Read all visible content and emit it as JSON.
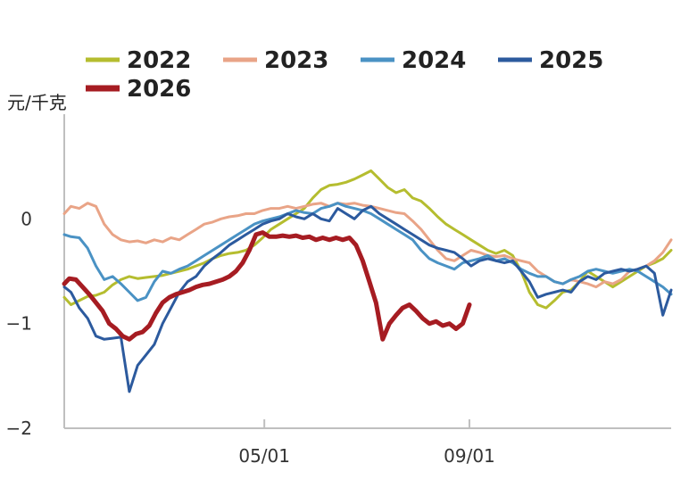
{
  "chart_data": {
    "type": "line",
    "ylabel": "元/千克",
    "ylim": [
      -2,
      1
    ],
    "yticks": [
      {
        "value": 0,
        "label": "0"
      },
      {
        "value": -1,
        "label": "−1"
      },
      {
        "value": -2,
        "label": "−2"
      }
    ],
    "xlim": [
      1,
      365
    ],
    "xticks": [
      {
        "value": 121,
        "label": "05/01"
      },
      {
        "value": 244,
        "label": "09/01"
      }
    ],
    "grid": false,
    "legend_position": "top",
    "series": [
      {
        "name": "2022",
        "color": "#b5bd2f",
        "width": 3,
        "x": [
          1,
          5,
          10,
          15,
          20,
          25,
          30,
          35,
          40,
          45,
          50,
          55,
          60,
          65,
          70,
          75,
          80,
          85,
          90,
          95,
          100,
          105,
          110,
          115,
          120,
          125,
          130,
          135,
          140,
          145,
          150,
          155,
          160,
          165,
          170,
          175,
          180,
          185,
          190,
          195,
          200,
          205,
          210,
          215,
          220,
          225,
          230,
          235,
          240,
          245,
          250,
          255,
          260,
          265,
          270,
          275,
          280,
          285,
          290,
          295,
          300,
          305,
          310,
          315,
          320,
          325,
          330,
          335,
          340,
          345,
          350,
          355,
          360,
          365
        ],
        "y": [
          -0.75,
          -0.82,
          -0.78,
          -0.74,
          -0.73,
          -0.7,
          -0.63,
          -0.58,
          -0.55,
          -0.57,
          -0.56,
          -0.55,
          -0.54,
          -0.52,
          -0.5,
          -0.48,
          -0.45,
          -0.42,
          -0.38,
          -0.35,
          -0.33,
          -0.32,
          -0.3,
          -0.25,
          -0.18,
          -0.1,
          -0.05,
          0.0,
          0.05,
          0.1,
          0.2,
          0.28,
          0.32,
          0.33,
          0.35,
          0.38,
          0.42,
          0.46,
          0.38,
          0.3,
          0.25,
          0.28,
          0.2,
          0.17,
          0.1,
          0.02,
          -0.05,
          -0.1,
          -0.15,
          -0.2,
          -0.25,
          -0.3,
          -0.33,
          -0.3,
          -0.35,
          -0.5,
          -0.7,
          -0.82,
          -0.85,
          -0.78,
          -0.7,
          -0.68,
          -0.6,
          -0.5,
          -0.55,
          -0.6,
          -0.65,
          -0.6,
          -0.55,
          -0.5,
          -0.45,
          -0.42,
          -0.38,
          -0.3
        ]
      },
      {
        "name": "2023",
        "color": "#e9a487",
        "width": 3,
        "x": [
          1,
          5,
          10,
          15,
          20,
          25,
          30,
          35,
          40,
          45,
          50,
          55,
          60,
          65,
          70,
          75,
          80,
          85,
          90,
          95,
          100,
          105,
          110,
          115,
          120,
          125,
          130,
          135,
          140,
          145,
          150,
          155,
          160,
          165,
          170,
          175,
          180,
          185,
          190,
          195,
          200,
          205,
          210,
          215,
          220,
          225,
          230,
          235,
          240,
          245,
          250,
          255,
          260,
          265,
          270,
          275,
          280,
          285,
          290,
          295,
          300,
          305,
          310,
          315,
          320,
          325,
          330,
          335,
          340,
          345,
          350,
          355,
          360,
          365
        ],
        "y": [
          0.05,
          0.12,
          0.1,
          0.15,
          0.12,
          -0.05,
          -0.15,
          -0.2,
          -0.22,
          -0.21,
          -0.23,
          -0.2,
          -0.22,
          -0.18,
          -0.2,
          -0.15,
          -0.1,
          -0.05,
          -0.03,
          0.0,
          0.02,
          0.03,
          0.05,
          0.05,
          0.08,
          0.1,
          0.1,
          0.12,
          0.1,
          0.12,
          0.14,
          0.15,
          0.12,
          0.15,
          0.14,
          0.15,
          0.13,
          0.12,
          0.1,
          0.08,
          0.06,
          0.05,
          -0.02,
          -0.1,
          -0.2,
          -0.3,
          -0.38,
          -0.4,
          -0.35,
          -0.3,
          -0.32,
          -0.35,
          -0.36,
          -0.35,
          -0.38,
          -0.4,
          -0.42,
          -0.5,
          -0.55,
          -0.6,
          -0.62,
          -0.58,
          -0.6,
          -0.62,
          -0.65,
          -0.6,
          -0.62,
          -0.58,
          -0.5,
          -0.48,
          -0.45,
          -0.4,
          -0.32,
          -0.2
        ]
      },
      {
        "name": "2024",
        "color": "#4a92c4",
        "width": 3,
        "x": [
          1,
          5,
          10,
          15,
          20,
          25,
          30,
          35,
          40,
          45,
          50,
          55,
          60,
          65,
          70,
          75,
          80,
          85,
          90,
          95,
          100,
          105,
          110,
          115,
          120,
          125,
          130,
          135,
          140,
          145,
          150,
          155,
          160,
          165,
          170,
          175,
          180,
          185,
          190,
          195,
          200,
          205,
          210,
          215,
          220,
          225,
          230,
          235,
          240,
          245,
          250,
          255,
          260,
          265,
          270,
          275,
          280,
          285,
          290,
          295,
          300,
          305,
          310,
          315,
          320,
          325,
          330,
          335,
          340,
          345,
          350,
          355,
          360,
          365
        ],
        "y": [
          -0.15,
          -0.17,
          -0.18,
          -0.28,
          -0.45,
          -0.58,
          -0.55,
          -0.62,
          -0.7,
          -0.78,
          -0.75,
          -0.6,
          -0.5,
          -0.52,
          -0.48,
          -0.45,
          -0.4,
          -0.35,
          -0.3,
          -0.25,
          -0.2,
          -0.15,
          -0.1,
          -0.05,
          -0.02,
          0.0,
          0.02,
          0.05,
          0.08,
          0.06,
          0.05,
          0.1,
          0.12,
          0.15,
          0.12,
          0.1,
          0.08,
          0.05,
          0.0,
          -0.05,
          -0.1,
          -0.15,
          -0.2,
          -0.3,
          -0.38,
          -0.42,
          -0.45,
          -0.48,
          -0.42,
          -0.4,
          -0.38,
          -0.35,
          -0.4,
          -0.38,
          -0.42,
          -0.48,
          -0.52,
          -0.55,
          -0.55,
          -0.6,
          -0.62,
          -0.58,
          -0.55,
          -0.5,
          -0.48,
          -0.5,
          -0.52,
          -0.5,
          -0.48,
          -0.5,
          -0.55,
          -0.6,
          -0.65,
          -0.72
        ]
      },
      {
        "name": "2025",
        "color": "#2c5a9e",
        "width": 3,
        "x": [
          1,
          5,
          10,
          15,
          20,
          25,
          30,
          35,
          40,
          45,
          50,
          55,
          60,
          65,
          70,
          75,
          80,
          85,
          90,
          95,
          100,
          105,
          110,
          115,
          120,
          125,
          130,
          135,
          140,
          145,
          150,
          155,
          160,
          165,
          170,
          175,
          180,
          185,
          190,
          195,
          200,
          205,
          210,
          215,
          220,
          225,
          230,
          235,
          240,
          245,
          250,
          255,
          260,
          265,
          270,
          275,
          280,
          285,
          290,
          295,
          300,
          305,
          310,
          315,
          320,
          325,
          330,
          335,
          340,
          345,
          350,
          355,
          360,
          365
        ],
        "y": [
          -0.65,
          -0.7,
          -0.85,
          -0.95,
          -1.12,
          -1.15,
          -1.14,
          -1.13,
          -1.65,
          -1.4,
          -1.3,
          -1.2,
          -1.0,
          -0.85,
          -0.7,
          -0.6,
          -0.55,
          -0.45,
          -0.38,
          -0.32,
          -0.25,
          -0.2,
          -0.15,
          -0.1,
          -0.05,
          -0.02,
          0.0,
          0.05,
          0.02,
          0.0,
          0.05,
          0.0,
          -0.02,
          0.1,
          0.05,
          0.0,
          0.08,
          0.12,
          0.05,
          0.0,
          -0.05,
          -0.1,
          -0.15,
          -0.2,
          -0.25,
          -0.28,
          -0.3,
          -0.32,
          -0.38,
          -0.45,
          -0.4,
          -0.38,
          -0.4,
          -0.42,
          -0.4,
          -0.5,
          -0.6,
          -0.75,
          -0.72,
          -0.7,
          -0.68,
          -0.7,
          -0.6,
          -0.55,
          -0.58,
          -0.52,
          -0.5,
          -0.48,
          -0.5,
          -0.48,
          -0.45,
          -0.52,
          -0.92,
          -0.68
        ]
      },
      {
        "name": "2026",
        "color": "#a61c22",
        "width": 5,
        "x": [
          1,
          4,
          8,
          12,
          16,
          20,
          24,
          28,
          32,
          36,
          40,
          44,
          48,
          52,
          56,
          60,
          64,
          68,
          72,
          76,
          80,
          84,
          88,
          92,
          96,
          100,
          104,
          108,
          112,
          116,
          120,
          124,
          128,
          132,
          136,
          140,
          144,
          148,
          152,
          156,
          160,
          164,
          168,
          172,
          176,
          180,
          184,
          188,
          192,
          196,
          200,
          204,
          208,
          212,
          216,
          220,
          224,
          228,
          232,
          236,
          240,
          244
        ],
        "y": [
          -0.62,
          -0.57,
          -0.58,
          -0.65,
          -0.72,
          -0.8,
          -0.88,
          -1.0,
          -1.05,
          -1.12,
          -1.15,
          -1.1,
          -1.08,
          -1.02,
          -0.9,
          -0.8,
          -0.75,
          -0.72,
          -0.7,
          -0.68,
          -0.65,
          -0.63,
          -0.62,
          -0.6,
          -0.58,
          -0.55,
          -0.5,
          -0.42,
          -0.3,
          -0.15,
          -0.13,
          -0.17,
          -0.17,
          -0.16,
          -0.17,
          -0.16,
          -0.18,
          -0.17,
          -0.2,
          -0.18,
          -0.2,
          -0.18,
          -0.2,
          -0.18,
          -0.25,
          -0.4,
          -0.6,
          -0.8,
          -1.15,
          -1.0,
          -0.92,
          -0.85,
          -0.82,
          -0.88,
          -0.95,
          -1.0,
          -0.98,
          -1.02,
          -1.0,
          -1.05,
          -1.0,
          -0.82
        ]
      }
    ]
  }
}
